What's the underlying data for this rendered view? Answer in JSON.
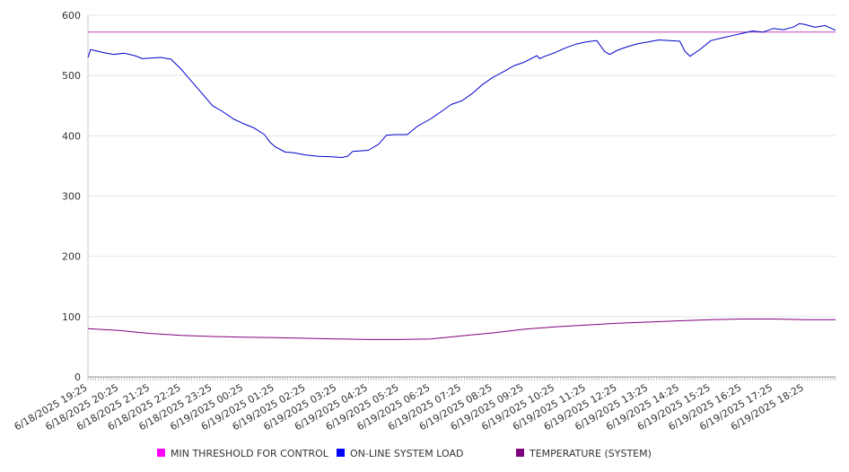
{
  "chart_data": {
    "type": "line",
    "grid": true,
    "legend_placement": "bottom",
    "ylim": [
      0,
      600
    ],
    "y_ticks": [
      0,
      100,
      200,
      300,
      400,
      500,
      600
    ],
    "x_range": [
      "6/18/2025 19:25",
      "6/19/2025 19:25"
    ],
    "x_tick_labels": [
      "6/18/2025 19:25",
      "6/18/2025 20:25",
      "6/18/2025 21:25",
      "6/18/2025 22:25",
      "6/18/2025 23:25",
      "6/19/2025 00:25",
      "6/19/2025 01:25",
      "6/19/2025 02:25",
      "6/19/2025 03:25",
      "6/19/2025 04:25",
      "6/19/2025 05:25",
      "6/19/2025 06:25",
      "6/19/2025 07:25",
      "6/19/2025 08:25",
      "6/19/2025 09:25",
      "6/19/2025 10:25",
      "6/19/2025 11:25",
      "6/19/2025 12:25",
      "6/19/2025 13:25",
      "6/19/2025 14:25",
      "6/19/2025 15:25",
      "6/19/2025 16:25",
      "6/19/2025 17:25",
      "6/19/2025 18:25"
    ],
    "series": [
      {
        "name": "MIN THRESHOLD FOR CONTROL",
        "color": "#c040c0",
        "legend_color": "#ff00ff",
        "x": [
          "6/18/2025 19:25",
          "6/19/2025 19:25"
        ],
        "y": [
          572,
          572
        ]
      },
      {
        "name": "ON-LINE SYSTEM LOAD",
        "color": "#0000cc",
        "legend_color": "#0000ff",
        "x": [
          "6/18/2025 19:25",
          "6/18/2025 19:30",
          "6/18/2025 19:55",
          "6/18/2025 20:15",
          "6/18/2025 20:35",
          "6/18/2025 20:55",
          "6/18/2025 21:10",
          "6/18/2025 21:25",
          "6/18/2025 21:45",
          "6/18/2025 22:05",
          "6/18/2025 22:25",
          "6/18/2025 22:45",
          "6/18/2025 23:05",
          "6/18/2025 23:25",
          "6/18/2025 23:45",
          "6/19/2025 00:05",
          "6/19/2025 00:25",
          "6/19/2025 00:45",
          "6/19/2025 01:05",
          "6/19/2025 01:15",
          "6/19/2025 01:25",
          "6/19/2025 01:45",
          "6/19/2025 02:00",
          "6/19/2025 02:25",
          "6/19/2025 02:50",
          "6/19/2025 03:15",
          "6/19/2025 03:35",
          "6/19/2025 03:45",
          "6/19/2025 03:55",
          "6/19/2025 04:25",
          "6/19/2025 04:45",
          "6/19/2025 05:00",
          "6/19/2025 05:15",
          "6/19/2025 05:40",
          "6/19/2025 06:00",
          "6/19/2025 06:25",
          "6/19/2025 06:45",
          "6/19/2025 07:05",
          "6/19/2025 07:25",
          "6/19/2025 07:45",
          "6/19/2025 08:05",
          "6/19/2025 08:25",
          "6/19/2025 08:45",
          "6/19/2025 09:05",
          "6/19/2025 09:25",
          "6/19/2025 09:50",
          "6/19/2025 09:55",
          "6/19/2025 10:05",
          "6/19/2025 10:25",
          "6/19/2025 10:45",
          "6/19/2025 11:05",
          "6/19/2025 11:25",
          "6/19/2025 11:45",
          "6/19/2025 12:00",
          "6/19/2025 12:10",
          "6/19/2025 12:25",
          "6/19/2025 12:45",
          "6/19/2025 13:05",
          "6/19/2025 13:25",
          "6/19/2025 13:45",
          "6/19/2025 14:05",
          "6/19/2025 14:25",
          "6/19/2025 14:35",
          "6/19/2025 14:45",
          "6/19/2025 15:05",
          "6/19/2025 15:25",
          "6/19/2025 15:45",
          "6/19/2025 16:05",
          "6/19/2025 16:25",
          "6/19/2025 16:45",
          "6/19/2025 17:05",
          "6/19/2025 17:25",
          "6/19/2025 17:45",
          "6/19/2025 18:05",
          "6/19/2025 18:15",
          "6/19/2025 18:25",
          "6/19/2025 18:45",
          "6/19/2025 19:05",
          "6/19/2025 19:25"
        ],
        "y": [
          530,
          543,
          538,
          535,
          537,
          533,
          528,
          529,
          530,
          527,
          510,
          490,
          470,
          450,
          440,
          428,
          420,
          413,
          402,
          390,
          382,
          373,
          372,
          368,
          366,
          365,
          364,
          366,
          374,
          376,
          386,
          401,
          402,
          402,
          416,
          428,
          440,
          452,
          458,
          470,
          485,
          497,
          506,
          516,
          522,
          533,
          528,
          532,
          538,
          546,
          552,
          556,
          558,
          540,
          535,
          542,
          548,
          553,
          556,
          559,
          558,
          557,
          540,
          532,
          544,
          558,
          562,
          566,
          570,
          574,
          572,
          578,
          576,
          581,
          586,
          585,
          580,
          583,
          575
        ]
      },
      {
        "name": "TEMPERATURE (SYSTEM)",
        "color": "#800080",
        "legend_color": "#800080",
        "x": [
          "6/18/2025 19:25",
          "6/18/2025 20:25",
          "6/18/2025 21:25",
          "6/18/2025 22:25",
          "6/18/2025 23:25",
          "6/19/2025 00:25",
          "6/19/2025 01:25",
          "6/19/2025 02:25",
          "6/19/2025 03:25",
          "6/19/2025 04:25",
          "6/19/2025 05:25",
          "6/19/2025 06:25",
          "6/19/2025 07:25",
          "6/19/2025 08:25",
          "6/19/2025 09:25",
          "6/19/2025 10:25",
          "6/19/2025 11:25",
          "6/19/2025 12:25",
          "6/19/2025 13:25",
          "6/19/2025 14:25",
          "6/19/2025 15:25",
          "6/19/2025 16:25",
          "6/19/2025 17:25",
          "6/19/2025 18:25",
          "6/19/2025 19:25"
        ],
        "y": [
          80,
          77,
          72,
          69,
          67,
          66,
          65,
          64,
          63,
          62,
          62,
          63,
          68,
          73,
          79,
          83,
          86,
          89,
          91,
          93,
          95,
          96,
          96,
          95,
          95
        ]
      }
    ]
  }
}
